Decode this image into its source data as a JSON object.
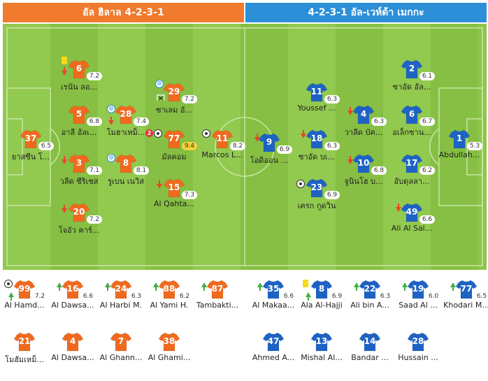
{
  "colors": {
    "home": "#f07a2e",
    "away": "#2d8fd8",
    "home_shirt": "#ef6a1f",
    "away_shirt": "#1e63c4",
    "pitch": "#8ec64b"
  },
  "header": {
    "home": "อัล ฮิลาล 4-2-3-1",
    "away": "4-2-3-1 อัล-เวห์ด้า เมกกะ"
  },
  "home_players": [
    {
      "num": "37",
      "rating": "6.5",
      "name": "ยาสซีน โ..."
    },
    {
      "num": "6",
      "rating": "7.2",
      "name": "เรนัน ลอ..."
    },
    {
      "num": "5",
      "rating": "6.8",
      "name": "อาลี อัลเ..."
    },
    {
      "num": "3",
      "rating": "7.1",
      "name": "วลีด ชีริเชส"
    },
    {
      "num": "20",
      "rating": "7.2",
      "name": "โจอัว คาร์..."
    },
    {
      "num": "28",
      "rating": "7.4",
      "name": "โมฮาเหม็..."
    },
    {
      "num": "8",
      "rating": "8.1",
      "name": "รูเบน เนวิส"
    },
    {
      "num": "29",
      "rating": "7.2",
      "name": "ซาเลม อั..."
    },
    {
      "num": "77",
      "rating": "9.4",
      "name": "มัลคอม"
    },
    {
      "num": "15",
      "rating": "7.3",
      "name": "Al Qahta..."
    },
    {
      "num": "11",
      "rating": "8.2",
      "name": "Marcos L..."
    }
  ],
  "away_players": [
    {
      "num": "9",
      "rating": "6.9",
      "name": "โอดิออน ..."
    },
    {
      "num": "11",
      "rating": "6.3",
      "name": "Youssef ..."
    },
    {
      "num": "18",
      "rating": "6.3",
      "name": "ซาอัด บเ..."
    },
    {
      "num": "23",
      "rating": "6.9",
      "name": "เครก กูดวิน"
    },
    {
      "num": "4",
      "rating": "6.3",
      "name": "วาลีด บัค..."
    },
    {
      "num": "10",
      "rating": "6.8",
      "name": "จูนินโฮ บ..."
    },
    {
      "num": "2",
      "rating": "6.1",
      "name": "ซาอัด อัล..."
    },
    {
      "num": "6",
      "rating": "6.7",
      "name": "อเล็กซาน..."
    },
    {
      "num": "17",
      "rating": "6.2",
      "name": "อับดุลลา..."
    },
    {
      "num": "49",
      "rating": "6.6",
      "name": "Ali Al Sal..."
    },
    {
      "num": "1",
      "rating": "5.3",
      "name": "Abdullah..."
    }
  ],
  "home_bench": [
    {
      "num": "99",
      "rating": "7.2",
      "name": "Al Hamd..."
    },
    {
      "num": "16",
      "rating": "6.6",
      "name": "Al Dawsa..."
    },
    {
      "num": "24",
      "rating": "6.3",
      "name": "Al Harbi M."
    },
    {
      "num": "88",
      "rating": "6.2",
      "name": "Al Yami H."
    },
    {
      "num": "87",
      "rating": "",
      "name": "Tambakti..."
    },
    {
      "num": "21",
      "rating": "",
      "name": "โมฮัมเหม็..."
    },
    {
      "num": "4",
      "rating": "",
      "name": "Al Dawsa..."
    },
    {
      "num": "7",
      "rating": "",
      "name": "Al Ghann..."
    },
    {
      "num": "38",
      "rating": "",
      "name": "Al Ghami..."
    }
  ],
  "away_bench": [
    {
      "num": "35",
      "rating": "6.6",
      "name": "Al Makaa..."
    },
    {
      "num": "8",
      "rating": "6.9",
      "name": "Ala Al-Hajji"
    },
    {
      "num": "22",
      "rating": "6.3",
      "name": "Ali bin A..."
    },
    {
      "num": "19",
      "rating": "6.0",
      "name": "Saad Al ..."
    },
    {
      "num": "77",
      "rating": "6.5",
      "name": "Khodari M..."
    },
    {
      "num": "47",
      "rating": "",
      "name": "Ahmed A..."
    },
    {
      "num": "13",
      "rating": "",
      "name": "Mishal Al..."
    },
    {
      "num": "14",
      "rating": "",
      "name": "Bandar ..."
    },
    {
      "num": "28",
      "rating": "",
      "name": "Hussain ..."
    }
  ],
  "events": {
    "goal_count_77": "2"
  }
}
